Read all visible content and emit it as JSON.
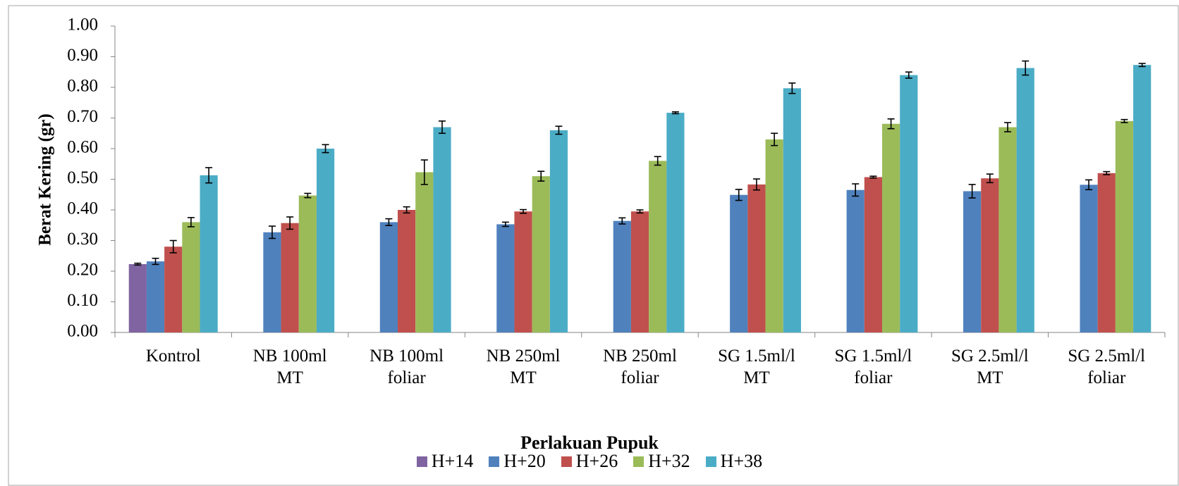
{
  "chart_data": {
    "type": "bar",
    "y_label": "Berat Kering (gr)",
    "x_label": "Perlakuan Pupuk",
    "categories": [
      "Kontrol",
      "NB 100ml MT",
      "NB 100ml foliar",
      "NB 250ml MT",
      "NB 250ml foliar",
      "SG 1.5ml/l MT",
      "SG 1.5ml/l foliar",
      "SG 2.5ml/l MT",
      "SG 2.5ml/l foliar"
    ],
    "series": [
      {
        "name": "H+14",
        "color": "#8064a2",
        "values": [
          0.223,
          null,
          null,
          null,
          null,
          null,
          null,
          null,
          null
        ],
        "errors": [
          0.003,
          null,
          null,
          null,
          null,
          null,
          null,
          null,
          null
        ]
      },
      {
        "name": "H+20",
        "color": "#4f81bd",
        "values": [
          0.232,
          0.327,
          0.36,
          0.353,
          0.364,
          0.449,
          0.465,
          0.461,
          0.482
        ],
        "errors": [
          0.01,
          0.02,
          0.011,
          0.007,
          0.01,
          0.018,
          0.02,
          0.022,
          0.016
        ]
      },
      {
        "name": "H+26",
        "color": "#c0504d",
        "values": [
          0.28,
          0.357,
          0.4,
          0.395,
          0.395,
          0.483,
          0.507,
          0.503,
          0.52
        ],
        "errors": [
          0.02,
          0.02,
          0.01,
          0.006,
          0.005,
          0.018,
          0.003,
          0.014,
          0.005
        ]
      },
      {
        "name": "H+32",
        "color": "#9bbb59",
        "values": [
          0.36,
          0.447,
          0.523,
          0.51,
          0.56,
          0.63,
          0.681,
          0.67,
          0.69
        ],
        "errors": [
          0.015,
          0.007,
          0.04,
          0.016,
          0.014,
          0.02,
          0.016,
          0.015,
          0.005
        ]
      },
      {
        "name": "H+38",
        "color": "#4bacc6",
        "values": [
          0.513,
          0.6,
          0.67,
          0.66,
          0.717,
          0.797,
          0.84,
          0.863,
          0.873
        ],
        "errors": [
          0.025,
          0.013,
          0.02,
          0.013,
          0.003,
          0.017,
          0.01,
          0.023,
          0.005
        ]
      }
    ],
    "ylim": [
      0,
      1
    ],
    "yticks": [
      {
        "value": 0,
        "label": "0.00"
      },
      {
        "value": 0.1,
        "label": "0.10"
      },
      {
        "value": 0.2,
        "label": "0.20"
      },
      {
        "value": 0.3,
        "label": "0.30"
      },
      {
        "value": 0.4,
        "label": "0.40"
      },
      {
        "value": 0.5,
        "label": "0.50"
      },
      {
        "value": 0.6,
        "label": "0.60"
      },
      {
        "value": 0.7,
        "label": "0.70"
      },
      {
        "value": 0.8,
        "label": "0.80"
      },
      {
        "value": 0.9,
        "label": "0.90"
      },
      {
        "value": 1,
        "label": "1.00"
      }
    ],
    "grid": false,
    "legend": "bottom"
  }
}
